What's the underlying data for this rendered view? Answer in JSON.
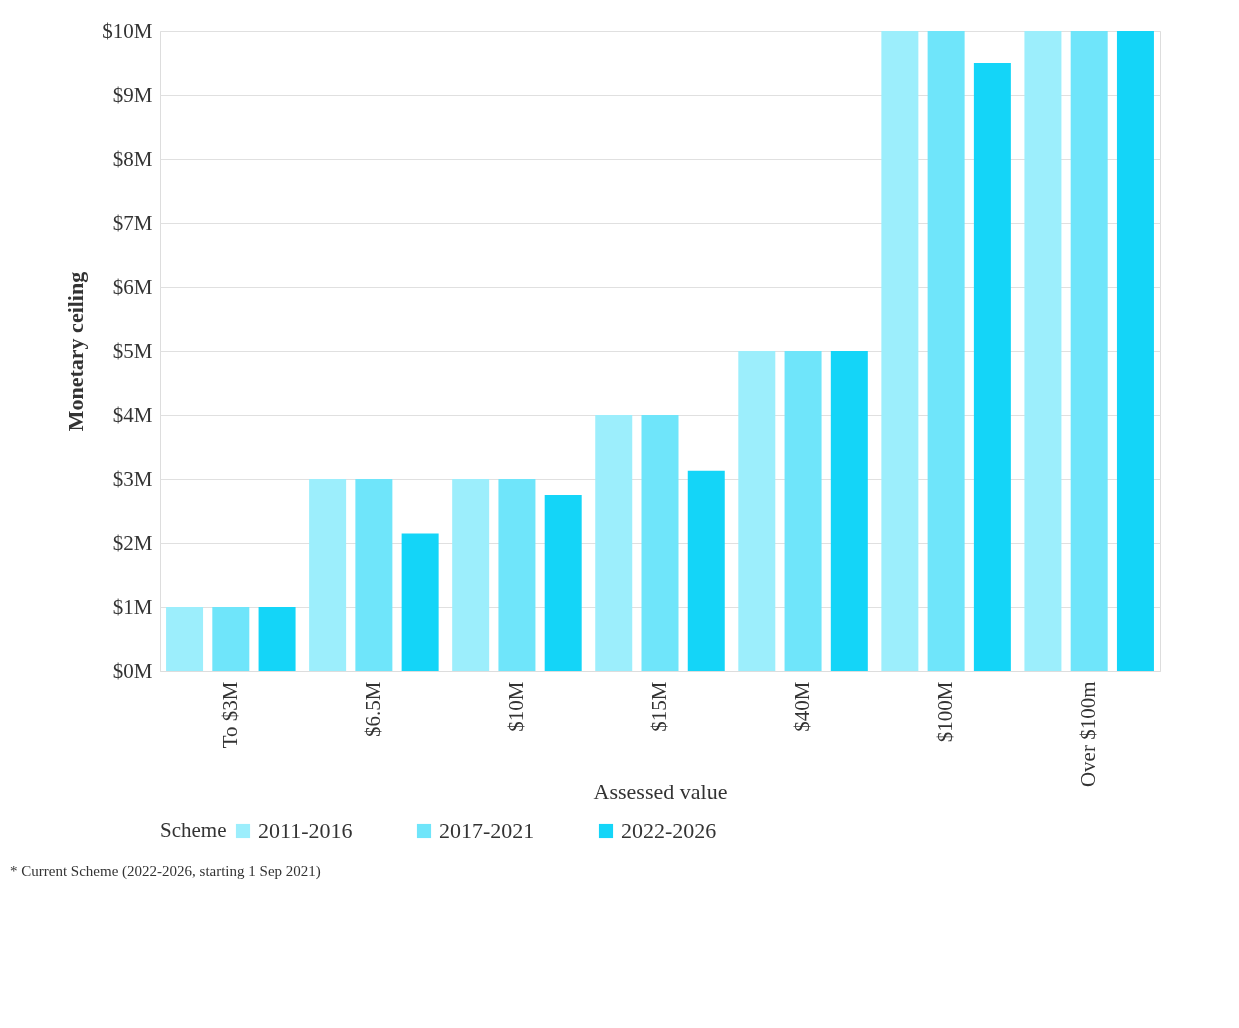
{
  "chart_data": {
    "type": "bar",
    "xlabel": "Assessed value",
    "ylabel": "Monetary ceiling",
    "legend_title": "Scheme",
    "categories": [
      "To $3M",
      "$6.5M",
      "$10M",
      "$15M",
      "$40M",
      "$100M",
      "Over $100m"
    ],
    "series": [
      {
        "name": "2011-2016",
        "color": "#9ceefc",
        "values": [
          1,
          3,
          3,
          4,
          5,
          10,
          10
        ]
      },
      {
        "name": "2017-2021",
        "color": "#6fe5fa",
        "values": [
          1,
          3,
          3,
          4,
          5,
          10,
          10
        ]
      },
      {
        "name": "2022-2026",
        "color": "#14d5f8",
        "values": [
          1,
          2.15,
          2.75,
          3.13,
          5,
          9.5,
          10
        ]
      }
    ],
    "ylim": [
      0,
      10
    ],
    "yticks": [
      {
        "value": 0,
        "label": "$0M"
      },
      {
        "value": 1,
        "label": "$1M"
      },
      {
        "value": 2,
        "label": "$2M"
      },
      {
        "value": 3,
        "label": "$3M"
      },
      {
        "value": 4,
        "label": "$4M"
      },
      {
        "value": 5,
        "label": "$5M"
      },
      {
        "value": 6,
        "label": "$6M"
      },
      {
        "value": 7,
        "label": "$7M"
      },
      {
        "value": 8,
        "label": "$8M"
      },
      {
        "value": 9,
        "label": "$9M"
      },
      {
        "value": 10,
        "label": "$10M"
      }
    ],
    "grid": "y",
    "legend": "bottom",
    "annotations": [
      "* Current  Scheme (2022-2026,  starting 1 Sep 2021)"
    ]
  }
}
